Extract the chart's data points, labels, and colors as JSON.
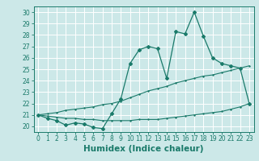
{
  "xlabel": "Humidex (Indice chaleur)",
  "bg_color": "#cce8e8",
  "grid_color": "#ffffff",
  "line_color": "#1a7a6a",
  "xlim": [
    -0.5,
    23.5
  ],
  "ylim": [
    19.5,
    30.5
  ],
  "xticks": [
    0,
    1,
    2,
    3,
    4,
    5,
    6,
    7,
    8,
    9,
    10,
    11,
    12,
    13,
    14,
    15,
    16,
    17,
    18,
    19,
    20,
    21,
    22,
    23
  ],
  "yticks": [
    20,
    21,
    22,
    23,
    24,
    25,
    26,
    27,
    28,
    29,
    30
  ],
  "series1_x": [
    0,
    1,
    2,
    3,
    4,
    5,
    6,
    7,
    8,
    9,
    10,
    11,
    12,
    13,
    14,
    15,
    16,
    17,
    18,
    19,
    20,
    21,
    22,
    23
  ],
  "series1_y": [
    21.0,
    20.7,
    20.5,
    20.1,
    20.3,
    20.2,
    19.9,
    19.8,
    21.1,
    22.4,
    25.5,
    26.7,
    27.0,
    26.8,
    24.2,
    28.3,
    28.1,
    30.0,
    27.9,
    26.0,
    25.5,
    25.3,
    25.1,
    22.0
  ],
  "series2_x": [
    0,
    1,
    2,
    3,
    4,
    5,
    6,
    7,
    8,
    9,
    10,
    11,
    12,
    13,
    14,
    15,
    16,
    17,
    18,
    19,
    20,
    21,
    22,
    23
  ],
  "series2_y": [
    21.0,
    21.1,
    21.2,
    21.4,
    21.5,
    21.6,
    21.7,
    21.9,
    22.0,
    22.2,
    22.5,
    22.8,
    23.1,
    23.3,
    23.5,
    23.8,
    24.0,
    24.2,
    24.4,
    24.5,
    24.7,
    24.9,
    25.1,
    25.3
  ],
  "series3_x": [
    0,
    1,
    2,
    3,
    4,
    5,
    6,
    7,
    8,
    9,
    10,
    11,
    12,
    13,
    14,
    15,
    16,
    17,
    18,
    19,
    20,
    21,
    22,
    23
  ],
  "series3_y": [
    21.0,
    20.9,
    20.8,
    20.7,
    20.7,
    20.6,
    20.6,
    20.5,
    20.5,
    20.5,
    20.5,
    20.6,
    20.6,
    20.6,
    20.7,
    20.8,
    20.9,
    21.0,
    21.1,
    21.2,
    21.3,
    21.5,
    21.7,
    22.0
  ],
  "tick_fontsize": 5.5,
  "xlabel_fontsize": 7.5
}
